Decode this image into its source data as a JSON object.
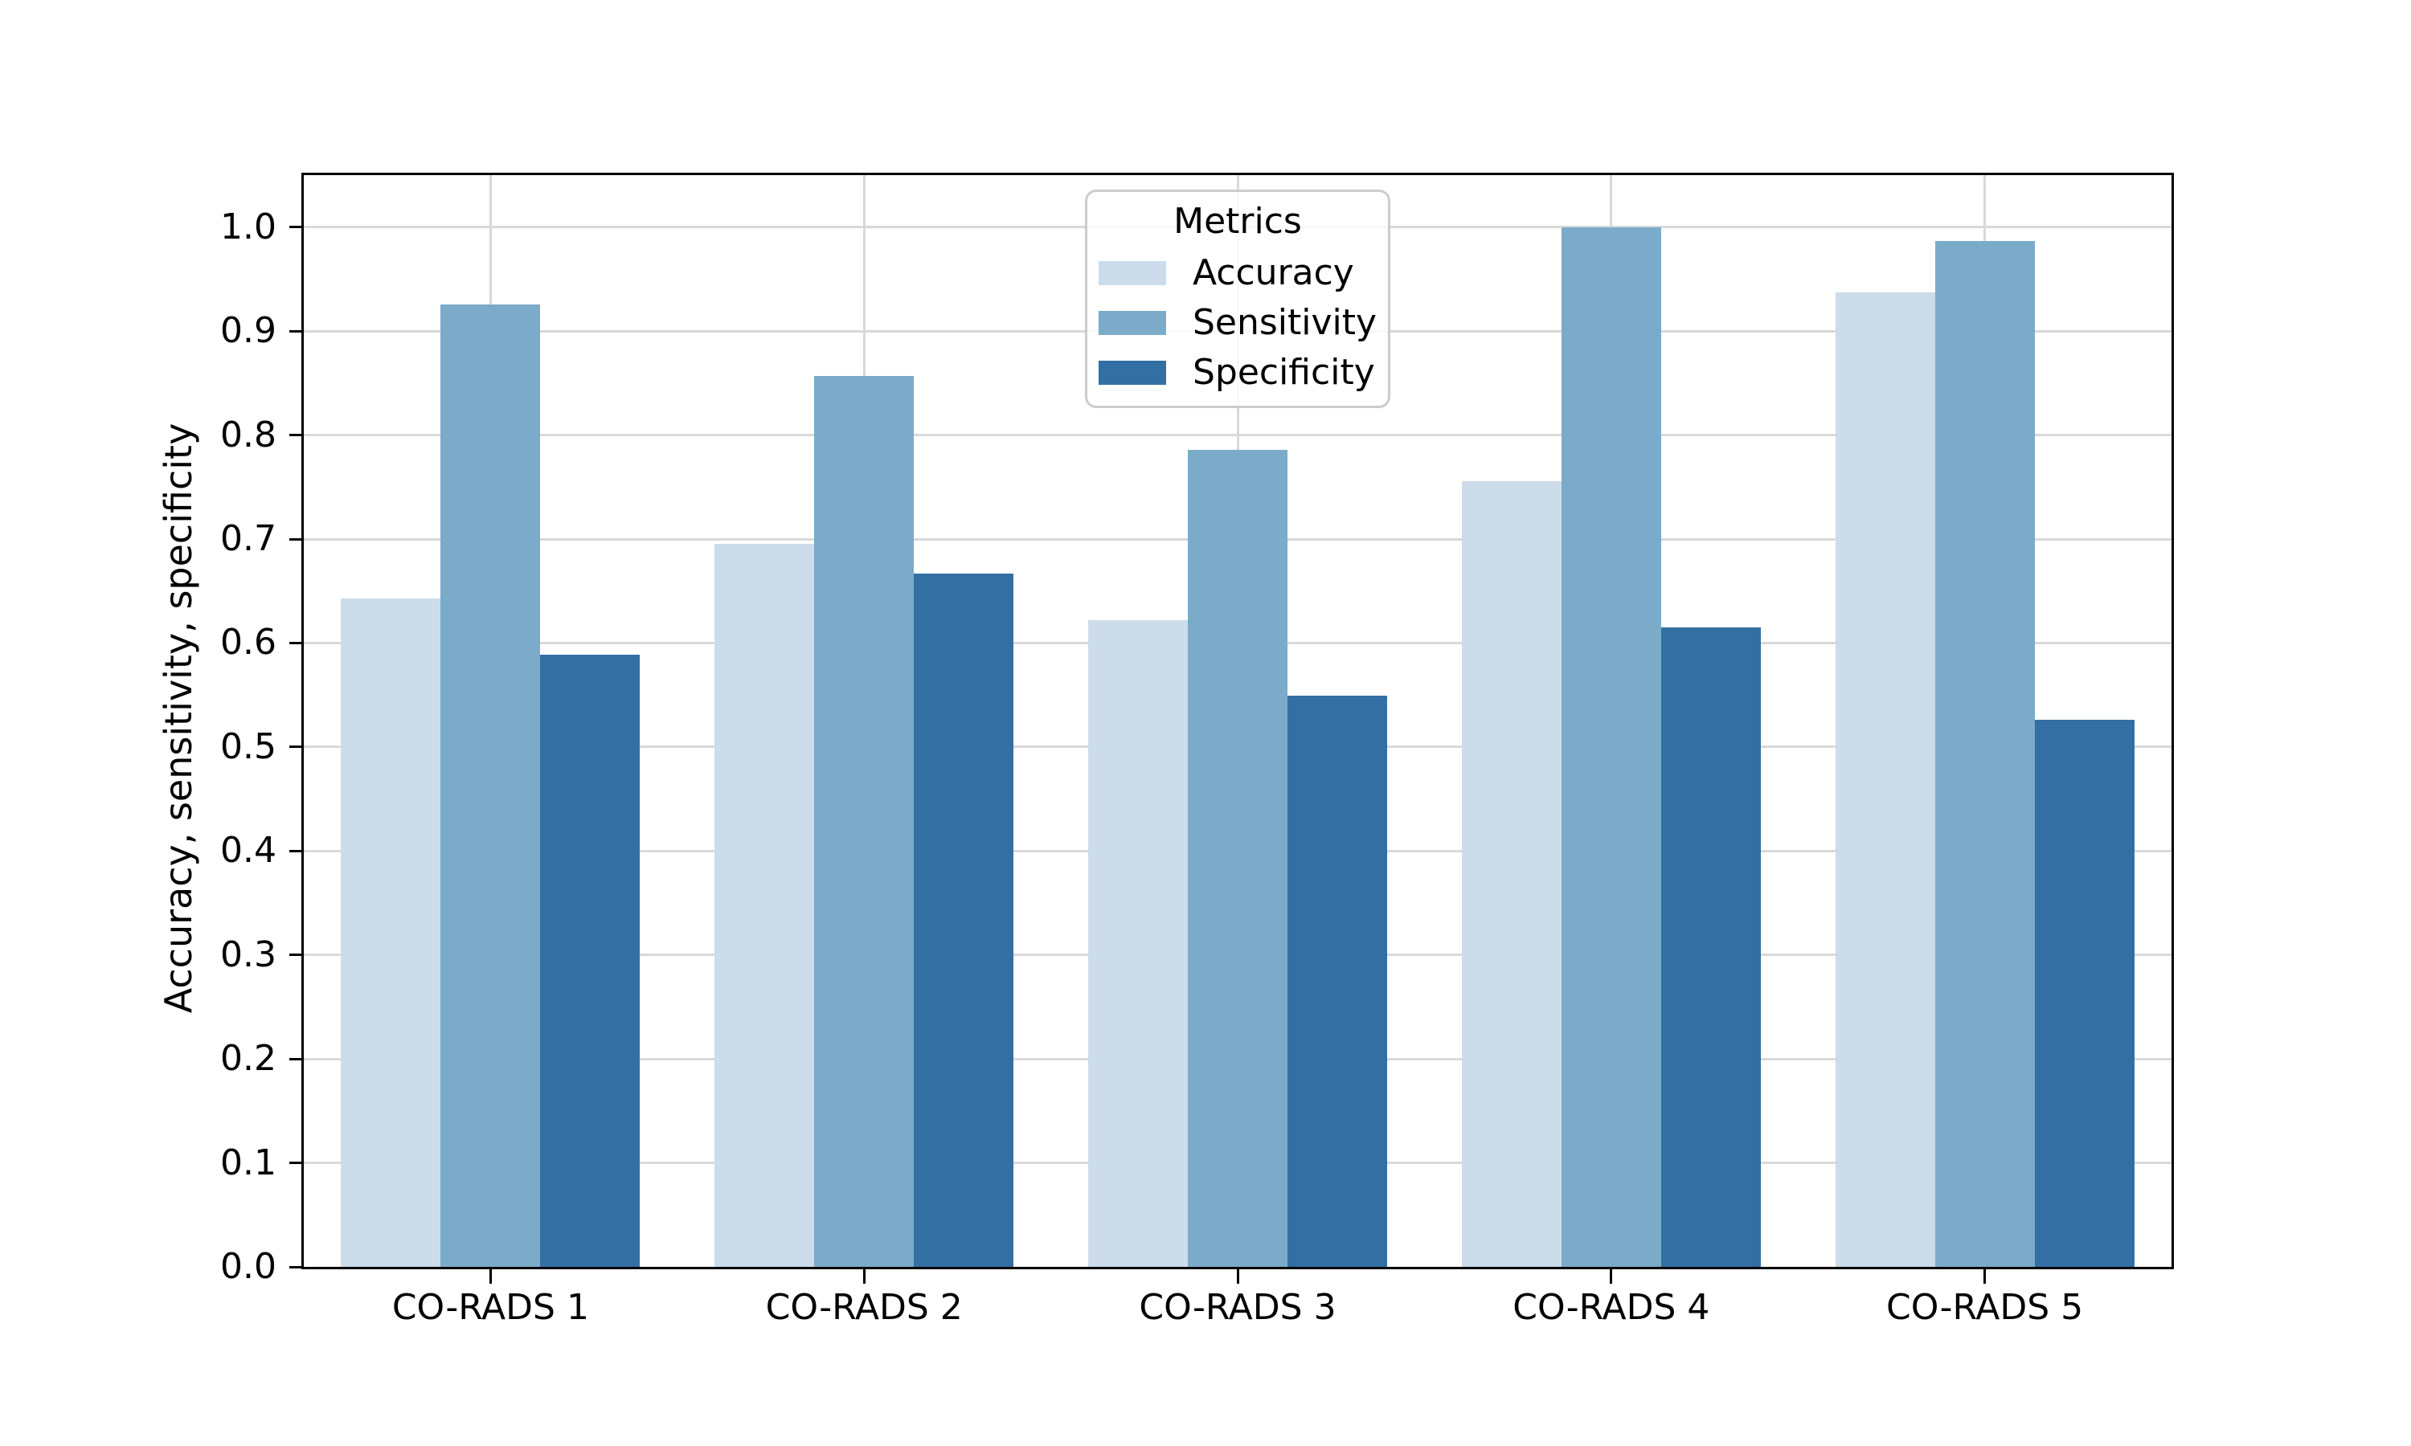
{
  "chart_data": {
    "type": "bar",
    "title": "",
    "categories": [
      "CO-RADS 1",
      "CO-RADS 2",
      "CO-RADS 3",
      "CO-RADS 4",
      "CO-RADS 5"
    ],
    "series": [
      {
        "name": "Accuracy",
        "color": "#ccdcea",
        "values": [
          0.643,
          0.695,
          0.622,
          0.756,
          0.937
        ]
      },
      {
        "name": "Sensitivity",
        "color": "#7babc9",
        "values": [
          0.926,
          0.857,
          0.786,
          1.0,
          0.987
        ]
      },
      {
        "name": "Specificity",
        "color": "#336fa3",
        "values": [
          0.589,
          0.667,
          0.549,
          0.615,
          0.526
        ]
      }
    ],
    "xlabel": "",
    "ylabel": "Accuracy, sensitivity, specificity",
    "ylim": [
      0,
      1.05
    ],
    "yticks": [
      "0.0",
      "0.1",
      "0.2",
      "0.3",
      "0.4",
      "0.5",
      "0.6",
      "0.7",
      "0.8",
      "0.9",
      "1.0"
    ],
    "grid": true,
    "group_width_fraction": 0.8,
    "legend": {
      "title": "Metrics",
      "position": "upper center"
    },
    "colors": {
      "gridline": "#d9d9d9",
      "spine": "#000000",
      "background": "#ffffff",
      "legend_border": "#cccccc"
    }
  }
}
